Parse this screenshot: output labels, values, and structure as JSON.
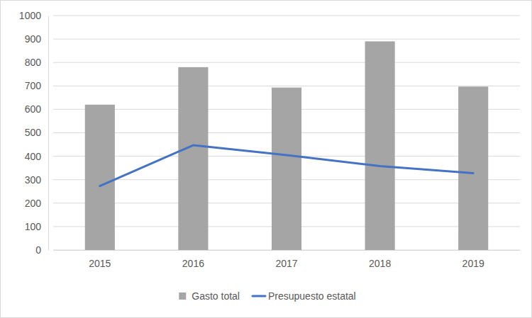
{
  "chart_data": {
    "type": "bar",
    "categories": [
      "2015",
      "2016",
      "2017",
      "2018",
      "2019"
    ],
    "series": [
      {
        "name": "Gasto total",
        "type": "bar",
        "color": "#a5a5a5",
        "values": [
          620,
          780,
          693,
          890,
          697
        ]
      },
      {
        "name": "Presupuesto estatal",
        "type": "line",
        "color": "#4472c4",
        "values": [
          273,
          447,
          405,
          358,
          328
        ]
      }
    ],
    "ylim": [
      0,
      1000
    ],
    "yticks": [
      0,
      100,
      200,
      300,
      400,
      500,
      600,
      700,
      800,
      900,
      1000
    ],
    "grid": true,
    "legend": "bottom"
  }
}
